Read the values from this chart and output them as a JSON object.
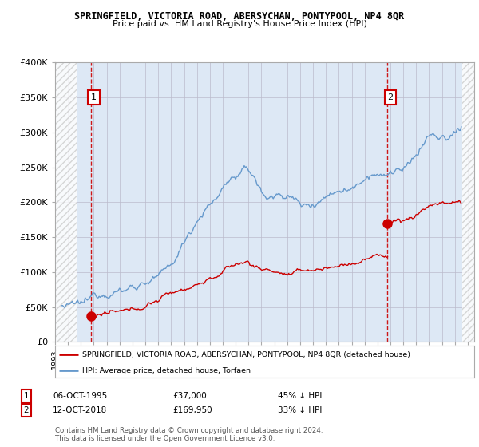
{
  "title": "SPRINGFIELD, VICTORIA ROAD, ABERSYCHAN, PONTYPOOL, NP4 8QR",
  "subtitle": "Price paid vs. HM Land Registry's House Price Index (HPI)",
  "legend_line1": "SPRINGFIELD, VICTORIA ROAD, ABERSYCHAN, PONTYPOOL, NP4 8QR (detached house)",
  "legend_line2": "HPI: Average price, detached house, Torfaen",
  "transaction1_date": "06-OCT-1995",
  "transaction1_price": "£37,000",
  "transaction1_hpi": "45% ↓ HPI",
  "transaction2_date": "12-OCT-2018",
  "transaction2_price": "£169,950",
  "transaction2_hpi": "33% ↓ HPI",
  "footer": "Contains HM Land Registry data © Crown copyright and database right 2024.\nThis data is licensed under the Open Government Licence v3.0.",
  "red_color": "#cc0000",
  "blue_color": "#6699cc",
  "blue_fill": "#dde8f5",
  "hatch_color": "#cccccc",
  "bg_color": "#dde8f5",
  "grid_color": "#bbbbcc",
  "ylim": [
    0,
    400000
  ],
  "xlim_left": 1993.0,
  "xlim_right": 2025.5,
  "transaction1_x": 1995.77,
  "transaction1_y": 37000,
  "transaction2_x": 2018.78,
  "transaction2_y": 169950,
  "data_start_x": 1995.0,
  "data_end_x": 2025.0
}
